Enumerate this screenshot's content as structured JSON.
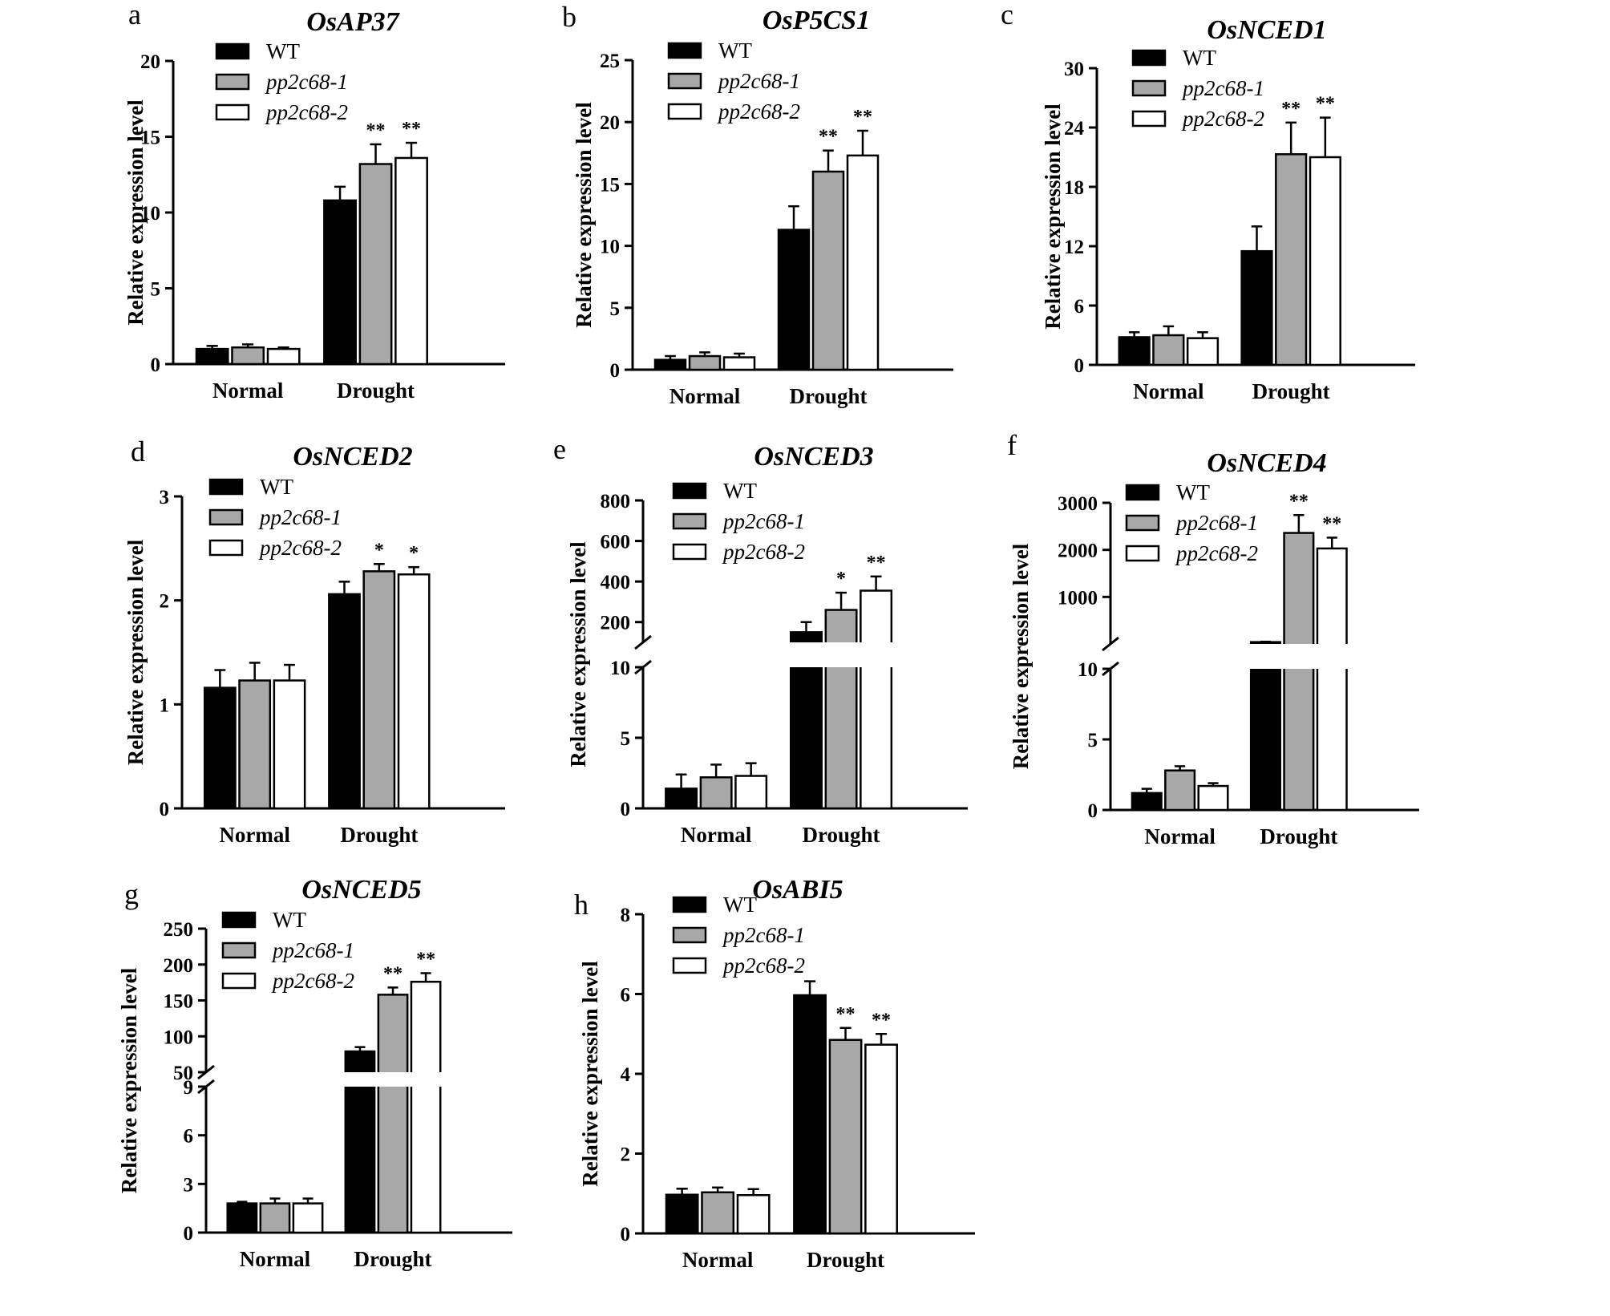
{
  "figure": {
    "groups": [
      "Normal",
      "Drought"
    ],
    "legend": [
      "WT",
      "pp2c68-1",
      "pp2c68-2"
    ],
    "ylabel": "Relative expression level",
    "colors": {
      "WT": "#000000",
      "pp2c68-1": "#a8a8a8",
      "pp2c68-2": "#ffffff"
    }
  },
  "chart_data": [
    {
      "letter": "a",
      "title": "OsAP37",
      "type": "bar",
      "categories": [
        "Normal",
        "Drought"
      ],
      "ylim": [
        0,
        20
      ],
      "yticks": [
        0,
        5,
        10,
        15,
        20
      ],
      "series": [
        {
          "name": "WT",
          "values": [
            1.0,
            10.8
          ],
          "errors": [
            0.2,
            0.9
          ],
          "sig": [
            "",
            ""
          ]
        },
        {
          "name": "pp2c68-1",
          "values": [
            1.1,
            13.2
          ],
          "errors": [
            0.2,
            1.3
          ],
          "sig": [
            "",
            "**"
          ]
        },
        {
          "name": "pp2c68-2",
          "values": [
            1.0,
            13.6
          ],
          "errors": [
            0.1,
            1.0
          ],
          "sig": [
            "",
            "**"
          ]
        }
      ]
    },
    {
      "letter": "b",
      "title": "OsP5CS1",
      "type": "bar",
      "categories": [
        "Normal",
        "Drought"
      ],
      "ylim": [
        0,
        25
      ],
      "yticks": [
        0,
        5,
        10,
        15,
        20,
        25
      ],
      "series": [
        {
          "name": "WT",
          "values": [
            0.8,
            11.3
          ],
          "errors": [
            0.3,
            1.9
          ],
          "sig": [
            "",
            ""
          ]
        },
        {
          "name": "pp2c68-1",
          "values": [
            1.1,
            16.0
          ],
          "errors": [
            0.3,
            1.7
          ],
          "sig": [
            "",
            "**"
          ]
        },
        {
          "name": "pp2c68-2",
          "values": [
            1.0,
            17.3
          ],
          "errors": [
            0.3,
            2.0
          ],
          "sig": [
            "",
            "**"
          ]
        }
      ]
    },
    {
      "letter": "c",
      "title": "OsNCED1",
      "type": "bar",
      "categories": [
        "Normal",
        "Drought"
      ],
      "ylim": [
        0,
        30
      ],
      "yticks": [
        0,
        6,
        12,
        18,
        24,
        30
      ],
      "series": [
        {
          "name": "WT",
          "values": [
            2.8,
            11.5
          ],
          "errors": [
            0.5,
            2.5
          ],
          "sig": [
            "",
            ""
          ]
        },
        {
          "name": "pp2c68-1",
          "values": [
            3.0,
            21.3
          ],
          "errors": [
            0.9,
            3.2
          ],
          "sig": [
            "",
            "**"
          ]
        },
        {
          "name": "pp2c68-2",
          "values": [
            2.7,
            21.0
          ],
          "errors": [
            0.6,
            4.0
          ],
          "sig": [
            "",
            "**"
          ]
        }
      ]
    },
    {
      "letter": "d",
      "title": "OsNCED2",
      "type": "bar",
      "categories": [
        "Normal",
        "Drought"
      ],
      "ylim": [
        0,
        3
      ],
      "yticks": [
        0,
        1,
        2,
        3
      ],
      "series": [
        {
          "name": "WT",
          "values": [
            1.16,
            2.06
          ],
          "errors": [
            0.17,
            0.12
          ],
          "sig": [
            "",
            ""
          ]
        },
        {
          "name": "pp2c68-1",
          "values": [
            1.23,
            2.28
          ],
          "errors": [
            0.17,
            0.07
          ],
          "sig": [
            "",
            "*"
          ]
        },
        {
          "name": "pp2c68-2",
          "values": [
            1.23,
            2.25
          ],
          "errors": [
            0.15,
            0.07
          ],
          "sig": [
            "",
            "*"
          ]
        }
      ]
    },
    {
      "letter": "e",
      "title": "OsNCED3",
      "type": "bar",
      "broken_axis": true,
      "categories": [
        "Normal",
        "Drought"
      ],
      "lower_range": [
        0,
        10
      ],
      "lower_ticks": [
        0,
        5,
        10
      ],
      "upper_range": [
        100,
        800
      ],
      "upper_ticks": [
        200,
        400,
        600,
        800
      ],
      "series": [
        {
          "name": "WT",
          "values": [
            1.4,
            150
          ],
          "errors": [
            1.0,
            50
          ],
          "sig": [
            "",
            ""
          ]
        },
        {
          "name": "pp2c68-1",
          "values": [
            2.2,
            260
          ],
          "errors": [
            0.9,
            85
          ],
          "sig": [
            "",
            "*"
          ]
        },
        {
          "name": "pp2c68-2",
          "values": [
            2.3,
            355
          ],
          "errors": [
            0.9,
            70
          ],
          "sig": [
            "",
            "**"
          ]
        }
      ]
    },
    {
      "letter": "f",
      "title": "OsNCED4",
      "type": "bar",
      "broken_axis": true,
      "categories": [
        "Normal",
        "Drought"
      ],
      "lower_range": [
        0,
        10
      ],
      "lower_ticks": [
        0,
        5,
        10
      ],
      "upper_range": [
        0,
        3000
      ],
      "upper_ticks": [
        1000,
        2000,
        3000
      ],
      "series": [
        {
          "name": "WT",
          "values": [
            1.2,
            40
          ],
          "errors": [
            0.3,
            8
          ],
          "sig": [
            "",
            ""
          ]
        },
        {
          "name": "pp2c68-1",
          "values": [
            2.8,
            2360
          ],
          "errors": [
            0.3,
            380
          ],
          "sig": [
            "",
            "**"
          ]
        },
        {
          "name": "pp2c68-2",
          "values": [
            1.7,
            2030
          ],
          "errors": [
            0.2,
            230
          ],
          "sig": [
            "",
            "**"
          ]
        }
      ]
    },
    {
      "letter": "g",
      "title": "OsNCED5",
      "type": "bar",
      "broken_axis": true,
      "categories": [
        "Normal",
        "Drought"
      ],
      "lower_range": [
        0,
        9
      ],
      "lower_ticks": [
        0,
        3,
        6,
        9
      ],
      "upper_range": [
        50,
        250
      ],
      "upper_ticks": [
        50,
        100,
        150,
        200,
        250
      ],
      "series": [
        {
          "name": "WT",
          "values": [
            1.8,
            79
          ],
          "errors": [
            0.1,
            6
          ],
          "sig": [
            "",
            ""
          ]
        },
        {
          "name": "pp2c68-1",
          "values": [
            1.8,
            158
          ],
          "errors": [
            0.3,
            10
          ],
          "sig": [
            "",
            "**"
          ]
        },
        {
          "name": "pp2c68-2",
          "values": [
            1.8,
            176
          ],
          "errors": [
            0.3,
            12
          ],
          "sig": [
            "",
            "**"
          ]
        }
      ]
    },
    {
      "letter": "h",
      "title": "OsABI5",
      "type": "bar",
      "categories": [
        "Normal",
        "Drought"
      ],
      "ylim": [
        0,
        8
      ],
      "yticks": [
        0,
        2,
        4,
        6,
        8
      ],
      "series": [
        {
          "name": "WT",
          "values": [
            0.97,
            5.97
          ],
          "errors": [
            0.15,
            0.35
          ],
          "sig": [
            "",
            ""
          ]
        },
        {
          "name": "pp2c68-1",
          "values": [
            1.03,
            4.85
          ],
          "errors": [
            0.12,
            0.3
          ],
          "sig": [
            "",
            "**"
          ]
        },
        {
          "name": "pp2c68-2",
          "values": [
            0.96,
            4.73
          ],
          "errors": [
            0.15,
            0.27
          ],
          "sig": [
            "",
            "**"
          ]
        }
      ]
    }
  ]
}
